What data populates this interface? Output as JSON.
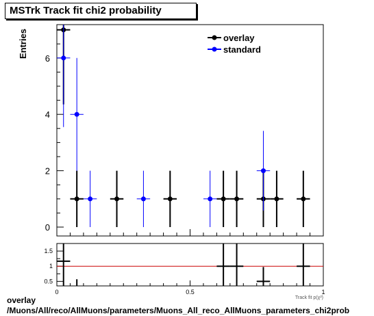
{
  "title": "MSTrk Track fit chi2 probability",
  "footer": {
    "line1": "overlay",
    "line2": "/Muons/All/reco/AllMuons/parameters/Muons_All_reco_AllMuons_parameters_chi2prob"
  },
  "colors": {
    "overlay": "#000000",
    "standard": "#0000ff",
    "ratio_line": "#cc0000"
  },
  "chart_data": [
    {
      "type": "scatter",
      "title": "MSTrk Track fit chi2 probability",
      "ylabel": "Entries",
      "xlabel": "Track fit p(χ²)",
      "xlim": [
        0,
        1
      ],
      "ylim": [
        0,
        7.5
      ],
      "yticks": [
        0,
        2,
        4,
        6
      ],
      "legend": {
        "position": "top-right",
        "entries": [
          "overlay",
          "standard"
        ]
      },
      "series": [
        {
          "name": "overlay",
          "points": [
            {
              "x": 0.025,
              "y": 7
            },
            {
              "x": 0.075,
              "y": 1
            },
            {
              "x": 0.225,
              "y": 1
            },
            {
              "x": 0.425,
              "y": 1
            },
            {
              "x": 0.625,
              "y": 1
            },
            {
              "x": 0.675,
              "y": 1
            },
            {
              "x": 0.775,
              "y": 1
            },
            {
              "x": 0.825,
              "y": 1
            },
            {
              "x": 0.925,
              "y": 1
            }
          ]
        },
        {
          "name": "standard",
          "points": [
            {
              "x": 0.025,
              "y": 6
            },
            {
              "x": 0.075,
              "y": 4
            },
            {
              "x": 0.125,
              "y": 1
            },
            {
              "x": 0.325,
              "y": 1
            },
            {
              "x": 0.575,
              "y": 1
            },
            {
              "x": 0.775,
              "y": 2
            }
          ]
        }
      ]
    },
    {
      "type": "scatter",
      "title": "",
      "xlim": [
        0,
        1
      ],
      "ylim": [
        0.35,
        1.75
      ],
      "yticks": [
        0.5,
        1,
        1.5
      ],
      "ytick_labels": [
        "0.5",
        "1",
        "1.5"
      ],
      "xticks": [
        0,
        0.5,
        1
      ],
      "xtick_labels": [
        "0",
        "0.5",
        "1"
      ],
      "reference_line": 1,
      "points": [
        {
          "x": 0.025,
          "y": 1.1667
        },
        {
          "x": 0.625,
          "y": 1
        },
        {
          "x": 0.675,
          "y": 1
        },
        {
          "x": 0.775,
          "y": 0.5
        },
        {
          "x": 0.925,
          "y": 1
        }
      ],
      "partial_points": [
        {
          "x": 0.075,
          "y": 0.25
        }
      ]
    }
  ]
}
